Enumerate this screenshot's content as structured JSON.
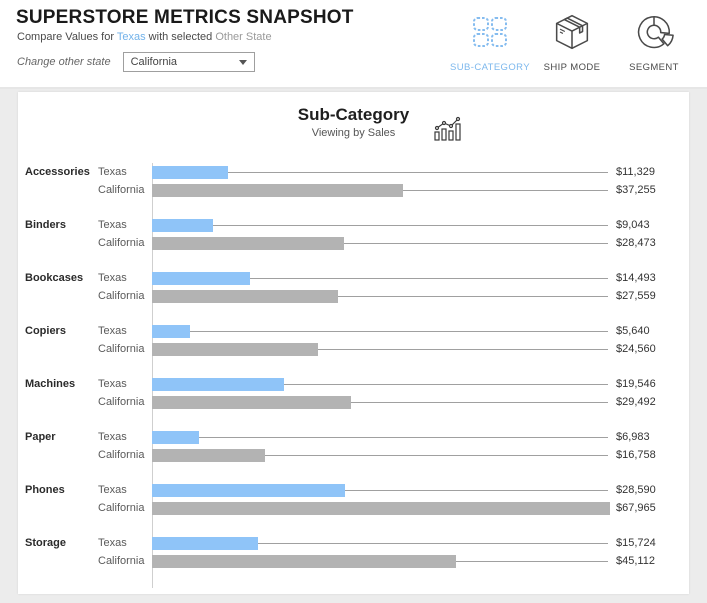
{
  "header": {
    "title": "SUPERSTORE METRICS SNAPSHOT",
    "subtitle_prefix": "Compare Values for ",
    "subtitle_state": "Texas",
    "subtitle_middle": " with selected ",
    "subtitle_other": "Other State",
    "change_label": "Change other state",
    "state_selector_value": "California",
    "nav": [
      {
        "label": "SUB-CATEGORY",
        "icon": "grid-icon",
        "active": true
      },
      {
        "label": "SHIP MODE",
        "icon": "box-icon",
        "active": false
      },
      {
        "label": "SEGMENT",
        "icon": "donut-icon",
        "active": false
      }
    ]
  },
  "chart": {
    "title": "Sub-Category",
    "subtitle": "Viewing by Sales"
  },
  "colors": {
    "texas_bar": "#8FC4F8",
    "california_bar": "#B3B3B3",
    "accent_blue": "#7DB8ED"
  },
  "chart_data": {
    "type": "bar",
    "orientation": "horizontal",
    "title": "Sub-Category",
    "subtitle": "Viewing by Sales",
    "value_axis": "Sales (USD)",
    "max_value": 67965,
    "categories": [
      "Accessories",
      "Binders",
      "Bookcases",
      "Copiers",
      "Machines",
      "Paper",
      "Phones",
      "Storage"
    ],
    "series": [
      {
        "name": "Texas",
        "color": "#8FC4F8",
        "values": [
          11329,
          9043,
          14493,
          5640,
          19546,
          6983,
          28590,
          15724
        ],
        "display": [
          "$11,329",
          "$9,043",
          "$14,493",
          "$5,640",
          "$19,546",
          "$6,983",
          "$28,590",
          "$15,724"
        ]
      },
      {
        "name": "California",
        "color": "#B3B3B3",
        "values": [
          37255,
          28473,
          27559,
          24560,
          29492,
          16758,
          67965,
          45112
        ],
        "display": [
          "$37,255",
          "$28,473",
          "$27,559",
          "$24,560",
          "$29,492",
          "$16,758",
          "$67,965",
          "$45,112"
        ]
      }
    ]
  }
}
